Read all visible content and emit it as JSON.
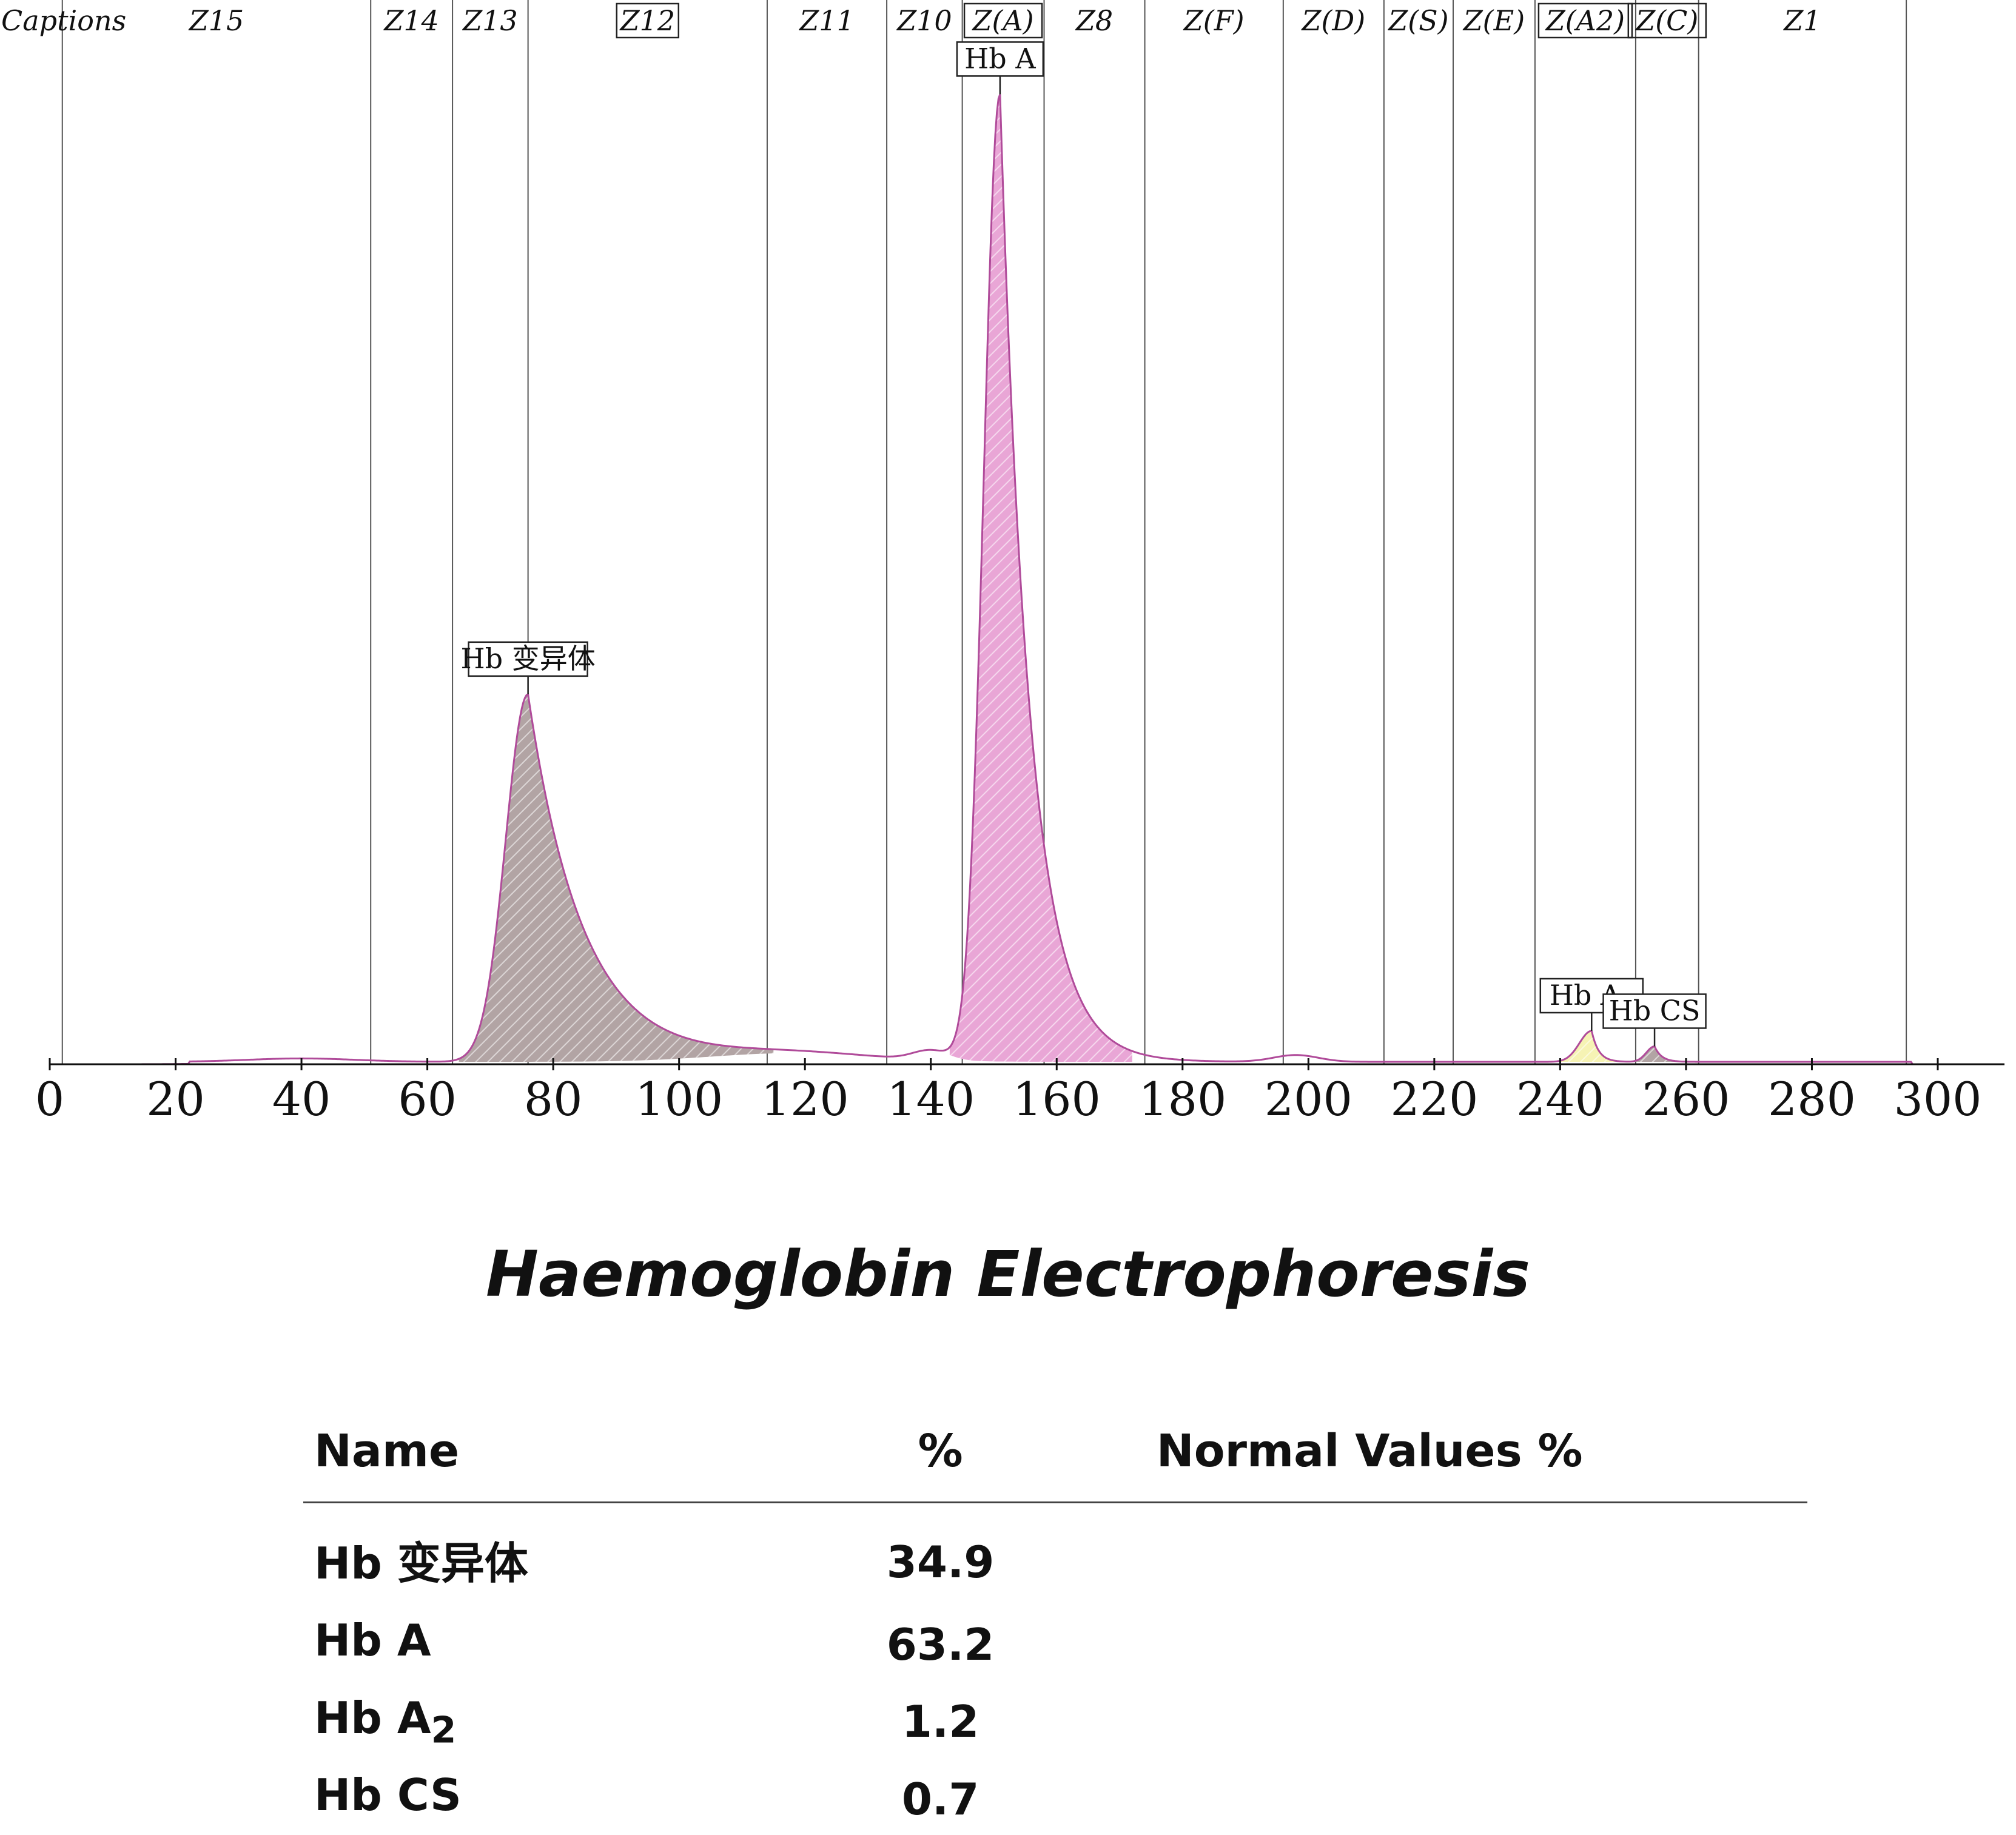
{
  "chart_data": {
    "type": "area",
    "x_ticks": [
      0,
      20,
      40,
      60,
      80,
      100,
      120,
      140,
      160,
      180,
      200,
      220,
      240,
      260,
      280,
      300
    ],
    "xlim": [
      0,
      300
    ],
    "ylim": [
      0,
      100
    ],
    "caption_header": "Captions",
    "zones": [
      {
        "label": "Z15",
        "start": 2,
        "end": 51,
        "boxed": false
      },
      {
        "label": "Z14",
        "start": 51,
        "end": 64,
        "boxed": false
      },
      {
        "label": "Z13",
        "start": 64,
        "end": 76,
        "boxed": false
      },
      {
        "label": "Z12",
        "start": 76,
        "end": 114,
        "boxed": true
      },
      {
        "label": "Z11",
        "start": 114,
        "end": 133,
        "boxed": false
      },
      {
        "label": "Z10",
        "start": 133,
        "end": 145,
        "boxed": false
      },
      {
        "label": "Z(A)",
        "start": 145,
        "end": 158,
        "boxed": true
      },
      {
        "label": "Z8",
        "start": 158,
        "end": 174,
        "boxed": false
      },
      {
        "label": "Z(F)",
        "start": 174,
        "end": 196,
        "boxed": false
      },
      {
        "label": "Z(D)",
        "start": 196,
        "end": 212,
        "boxed": false
      },
      {
        "label": "Z(S)",
        "start": 212,
        "end": 223,
        "boxed": false
      },
      {
        "label": "Z(E)",
        "start": 223,
        "end": 236,
        "boxed": false
      },
      {
        "label": "Z(A2)",
        "start": 236,
        "end": 252,
        "boxed": true
      },
      {
        "label": "Z(C)",
        "start": 252,
        "end": 262,
        "boxed": true
      },
      {
        "label": "Z1",
        "start": 262,
        "end": 295,
        "boxed": false
      }
    ],
    "peaks": [
      {
        "name": "Hb 变异体",
        "x": 76,
        "height": 38,
        "start": 65,
        "end": 115,
        "color": "#b2a4a4"
      },
      {
        "name": "Hb A",
        "x": 151,
        "height": 100,
        "start": 143,
        "end": 172,
        "color": "#e9a6d6"
      },
      {
        "name": "Hb A",
        "sub": "2",
        "x": 245,
        "height": 3.2,
        "start": 239,
        "end": 250,
        "color": "#f6f3b4"
      },
      {
        "name": "Hb CS",
        "x": 255,
        "height": 1.6,
        "start": 251,
        "end": 260,
        "color": "#b2a4a4"
      }
    ],
    "line_color": "#b04b9a"
  },
  "title": "Haemoglobin Electrophoresis",
  "table": {
    "headers": [
      "Name",
      "%",
      "Normal Values %"
    ],
    "rows": [
      {
        "name": "Hb 变异体",
        "sub": "",
        "percent": "34.9",
        "normal": ""
      },
      {
        "name": "Hb A",
        "sub": "",
        "percent": "63.2",
        "normal": ""
      },
      {
        "name": "Hb A",
        "sub": "2",
        "percent": "1.2",
        "normal": ""
      },
      {
        "name": "Hb CS",
        "sub": "",
        "percent": "0.7",
        "normal": ""
      }
    ]
  }
}
